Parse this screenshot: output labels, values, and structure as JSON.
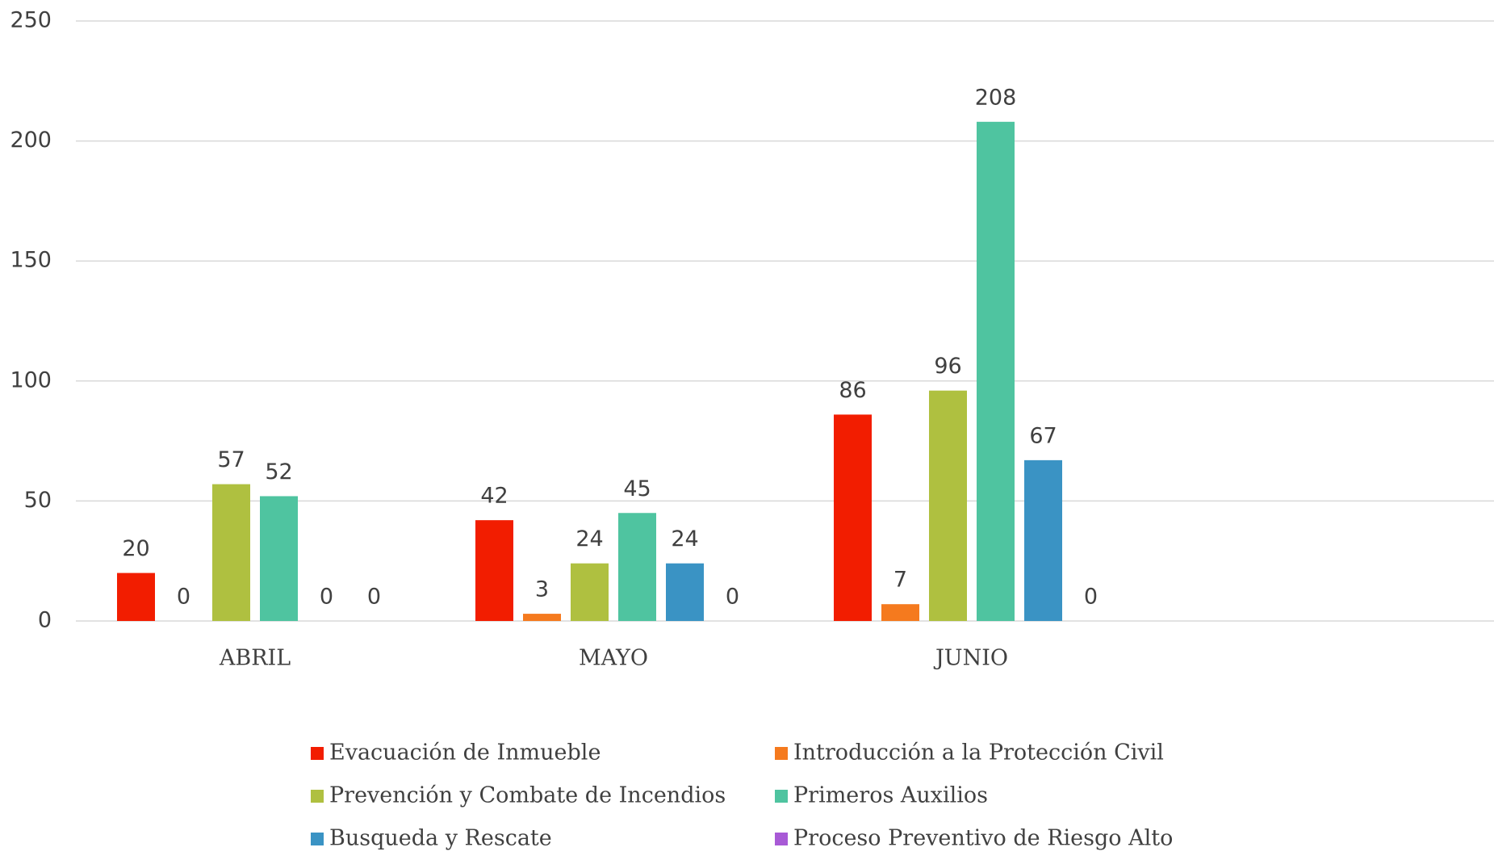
{
  "chart_data": {
    "type": "bar",
    "categories": [
      "ABRIL",
      "MAYO",
      "JUNIO"
    ],
    "series": [
      {
        "name": "Evacuación de Inmueble",
        "color": "#f21d00",
        "values": [
          20,
          42,
          86
        ]
      },
      {
        "name": "Introducción a la Protección Civil",
        "color": "#f57a1e",
        "values": [
          0,
          3,
          7
        ]
      },
      {
        "name": "Prevención y Combate de Incendios",
        "color": "#afc040",
        "values": [
          57,
          24,
          96
        ]
      },
      {
        "name": "Primeros Auxilios",
        "color": "#4fc4a0",
        "values": [
          52,
          45,
          208
        ]
      },
      {
        "name": "Busqueda y Rescate",
        "color": "#3a93c4",
        "values": [
          0,
          24,
          67
        ]
      },
      {
        "name": "Proceso Preventivo de Riesgo Alto",
        "color": "#a85ad6",
        "values": [
          0,
          0,
          0
        ]
      }
    ],
    "ylim": [
      0,
      250
    ],
    "yticks": [
      0,
      50,
      100,
      150,
      200,
      250
    ],
    "grid": true,
    "data_labels": true,
    "legend": "bottom"
  }
}
